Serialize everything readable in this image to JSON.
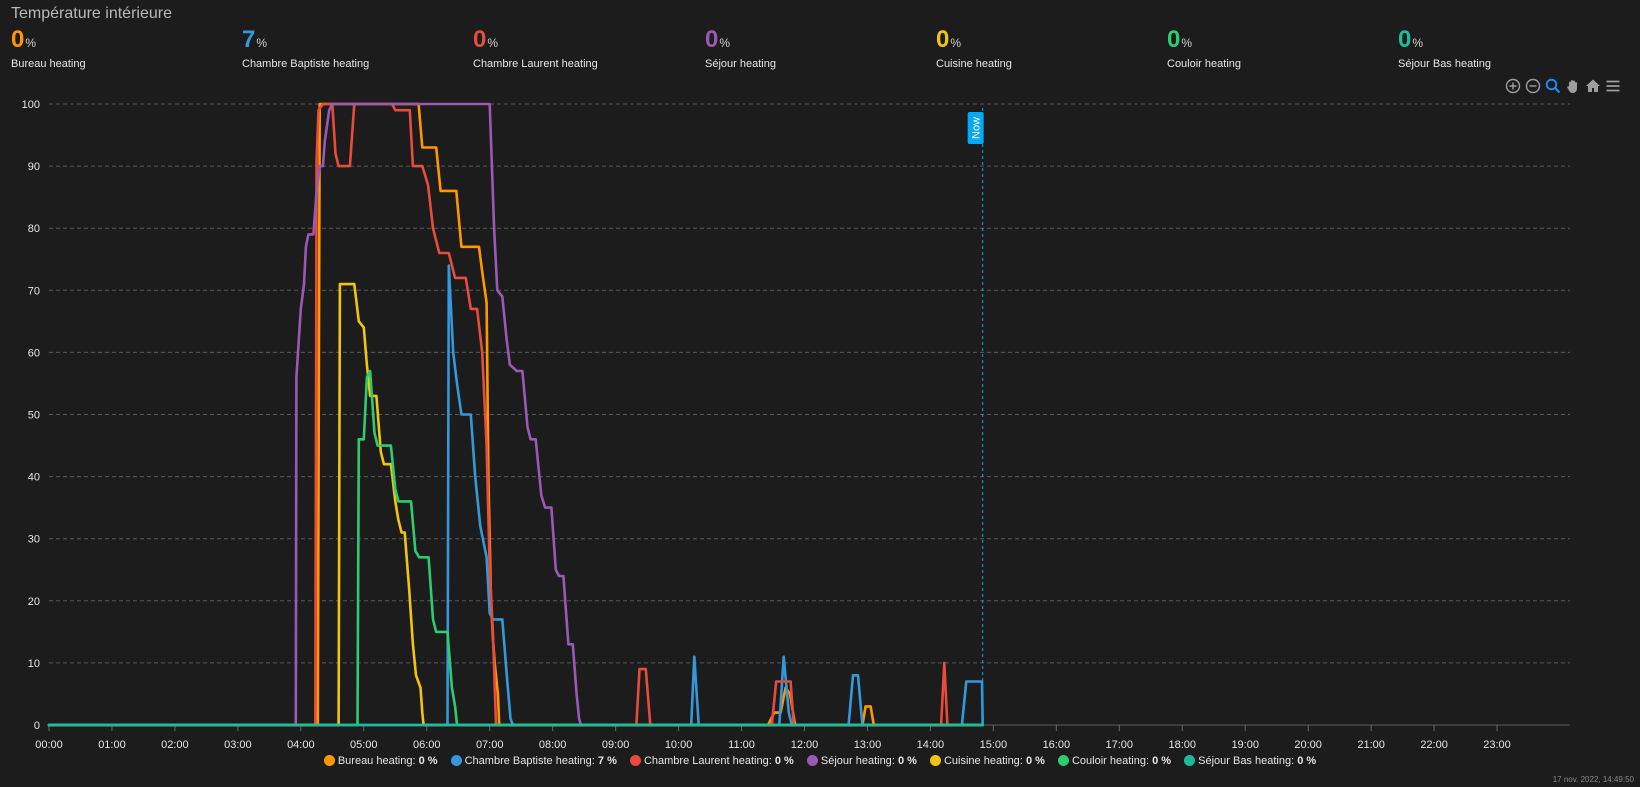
{
  "card": {
    "title": "Température intérieure"
  },
  "stats": [
    {
      "value": "0",
      "unit": "%",
      "name": "Bureau heating",
      "color": "#ff9800"
    },
    {
      "value": "7",
      "unit": "%",
      "name": "Chambre Baptiste heating",
      "color": "#3498db"
    },
    {
      "value": "0",
      "unit": "%",
      "name": "Chambre Laurent heating",
      "color": "#e74c3c"
    },
    {
      "value": "0",
      "unit": "%",
      "name": "Séjour heating",
      "color": "#9b59b6"
    },
    {
      "value": "0",
      "unit": "%",
      "name": "Cuisine heating",
      "color": "#f1c40f"
    },
    {
      "value": "0",
      "unit": "%",
      "name": "Couloir heating",
      "color": "#2ecc71"
    },
    {
      "value": "0",
      "unit": "%",
      "name": "Séjour Bas heating",
      "color": "#1abc9c"
    }
  ],
  "toolbar": {
    "icons": [
      "zoom-in-icon",
      "zoom-out-icon",
      "selection-zoom-icon",
      "pan-hand-icon",
      "home-reset-icon",
      "menu-icon"
    ]
  },
  "footer": {
    "timestamp": "17 nov. 2022, 14:49:50"
  },
  "chart_data": {
    "type": "line",
    "x_unit": "hour of day",
    "xlim": [
      0,
      24
    ],
    "ylim": [
      0,
      100
    ],
    "y_ticks": [
      "0",
      "10",
      "20",
      "30",
      "40",
      "50",
      "60",
      "70",
      "80",
      "90",
      "100"
    ],
    "x_ticks": [
      "00:00",
      "01:00",
      "02:00",
      "03:00",
      "04:00",
      "05:00",
      "06:00",
      "07:00",
      "08:00",
      "09:00",
      "10:00",
      "11:00",
      "12:00",
      "13:00",
      "14:00",
      "15:00",
      "16:00",
      "17:00",
      "18:00",
      "19:00",
      "20:00",
      "21:00",
      "22:00",
      "23:00"
    ],
    "grid": true,
    "legend_position": "bottom",
    "annotation": {
      "label": "Now",
      "x": 14.83,
      "color": "#03a9f4"
    },
    "series": [
      {
        "name": "Bureau heating",
        "legend_value": "0 %",
        "color": "#ff9800",
        "points": [
          [
            0,
            0
          ],
          [
            4.27,
            0
          ],
          [
            4.3,
            100
          ],
          [
            5.87,
            100
          ],
          [
            5.93,
            93
          ],
          [
            6.15,
            93
          ],
          [
            6.22,
            86
          ],
          [
            6.47,
            86
          ],
          [
            6.55,
            77
          ],
          [
            6.83,
            77
          ],
          [
            6.88,
            73
          ],
          [
            6.95,
            68
          ],
          [
            6.98,
            40
          ],
          [
            7.02,
            20
          ],
          [
            7.05,
            14
          ],
          [
            7.08,
            10
          ],
          [
            7.13,
            5
          ],
          [
            7.15,
            0
          ],
          [
            11.42,
            0
          ],
          [
            11.52,
            2
          ],
          [
            11.62,
            2
          ],
          [
            11.7,
            6
          ],
          [
            11.77,
            5
          ],
          [
            11.85,
            0
          ],
          [
            12.92,
            0
          ],
          [
            12.97,
            3
          ],
          [
            13.05,
            3
          ],
          [
            13.1,
            0
          ],
          [
            14.83,
            0
          ]
        ]
      },
      {
        "name": "Chambre Baptiste heating",
        "legend_value": "7 %",
        "color": "#3498db",
        "points": [
          [
            0,
            0
          ],
          [
            6.33,
            0
          ],
          [
            6.35,
            74
          ],
          [
            6.42,
            60
          ],
          [
            6.48,
            55
          ],
          [
            6.55,
            50
          ],
          [
            6.7,
            50
          ],
          [
            6.77,
            40
          ],
          [
            6.85,
            32
          ],
          [
            6.95,
            27
          ],
          [
            7.0,
            18
          ],
          [
            7.05,
            17
          ],
          [
            7.2,
            17
          ],
          [
            7.28,
            7
          ],
          [
            7.33,
            1
          ],
          [
            7.37,
            0
          ],
          [
            10.2,
            0
          ],
          [
            10.25,
            11
          ],
          [
            10.32,
            0
          ],
          [
            11.6,
            0
          ],
          [
            11.67,
            11
          ],
          [
            11.75,
            2
          ],
          [
            11.8,
            0
          ],
          [
            12.7,
            0
          ],
          [
            12.77,
            8
          ],
          [
            12.85,
            8
          ],
          [
            12.92,
            0
          ],
          [
            14.5,
            0
          ],
          [
            14.57,
            7
          ],
          [
            14.82,
            7
          ],
          [
            14.83,
            0
          ]
        ]
      },
      {
        "name": "Chambre Laurent heating",
        "legend_value": "0 %",
        "color": "#e74c3c",
        "points": [
          [
            0,
            0
          ],
          [
            4.23,
            0
          ],
          [
            4.25,
            91
          ],
          [
            4.28,
            99
          ],
          [
            4.35,
            100
          ],
          [
            4.5,
            100
          ],
          [
            4.55,
            92
          ],
          [
            4.6,
            90
          ],
          [
            4.78,
            90
          ],
          [
            4.85,
            100
          ],
          [
            5.45,
            100
          ],
          [
            5.5,
            99
          ],
          [
            5.73,
            99
          ],
          [
            5.78,
            90
          ],
          [
            5.93,
            90
          ],
          [
            6.02,
            87
          ],
          [
            6.1,
            80
          ],
          [
            6.2,
            76
          ],
          [
            6.35,
            76
          ],
          [
            6.45,
            72
          ],
          [
            6.62,
            72
          ],
          [
            6.7,
            67
          ],
          [
            6.8,
            67
          ],
          [
            6.88,
            60
          ],
          [
            6.95,
            45
          ],
          [
            7.0,
            25
          ],
          [
            7.05,
            15
          ],
          [
            7.1,
            0
          ],
          [
            9.33,
            0
          ],
          [
            9.38,
            9
          ],
          [
            9.48,
            9
          ],
          [
            9.55,
            0
          ],
          [
            11.48,
            0
          ],
          [
            11.55,
            7
          ],
          [
            11.78,
            7
          ],
          [
            11.83,
            0
          ],
          [
            14.17,
            0
          ],
          [
            14.22,
            10
          ],
          [
            14.27,
            0
          ],
          [
            14.83,
            0
          ]
        ]
      },
      {
        "name": "Séjour heating",
        "legend_value": "0 %",
        "color": "#9b59b6",
        "points": [
          [
            0,
            0
          ],
          [
            3.92,
            0
          ],
          [
            3.93,
            56
          ],
          [
            4.0,
            67
          ],
          [
            4.05,
            71
          ],
          [
            4.08,
            77
          ],
          [
            4.12,
            79
          ],
          [
            4.2,
            79
          ],
          [
            4.25,
            86
          ],
          [
            4.3,
            90
          ],
          [
            4.35,
            90
          ],
          [
            4.38,
            94
          ],
          [
            4.45,
            99
          ],
          [
            4.5,
            100
          ],
          [
            7.0,
            100
          ],
          [
            7.07,
            80
          ],
          [
            7.12,
            70
          ],
          [
            7.2,
            69
          ],
          [
            7.27,
            62
          ],
          [
            7.32,
            58
          ],
          [
            7.43,
            57
          ],
          [
            7.52,
            57
          ],
          [
            7.6,
            48
          ],
          [
            7.65,
            46
          ],
          [
            7.73,
            46
          ],
          [
            7.82,
            37
          ],
          [
            7.88,
            35
          ],
          [
            7.98,
            35
          ],
          [
            8.05,
            25
          ],
          [
            8.1,
            24
          ],
          [
            8.17,
            24
          ],
          [
            8.25,
            13
          ],
          [
            8.32,
            13
          ],
          [
            8.38,
            5
          ],
          [
            8.42,
            1
          ],
          [
            8.45,
            0
          ],
          [
            14.83,
            0
          ]
        ]
      },
      {
        "name": "Cuisine heating",
        "legend_value": "0 %",
        "color": "#f1c40f",
        "points": [
          [
            0,
            0
          ],
          [
            4.6,
            0
          ],
          [
            4.62,
            71
          ],
          [
            4.85,
            71
          ],
          [
            4.92,
            65
          ],
          [
            5.0,
            64
          ],
          [
            5.05,
            58
          ],
          [
            5.1,
            53
          ],
          [
            5.2,
            53
          ],
          [
            5.27,
            44
          ],
          [
            5.32,
            42
          ],
          [
            5.43,
            42
          ],
          [
            5.5,
            36
          ],
          [
            5.55,
            33
          ],
          [
            5.6,
            31
          ],
          [
            5.65,
            31
          ],
          [
            5.72,
            22
          ],
          [
            5.78,
            13
          ],
          [
            5.83,
            8
          ],
          [
            5.9,
            6
          ],
          [
            5.93,
            2
          ],
          [
            5.95,
            0
          ],
          [
            14.83,
            0
          ]
        ]
      },
      {
        "name": "Couloir heating",
        "legend_value": "0 %",
        "color": "#2ecc71",
        "points": [
          [
            0,
            0
          ],
          [
            4.9,
            0
          ],
          [
            4.92,
            46
          ],
          [
            5.0,
            46
          ],
          [
            5.05,
            56
          ],
          [
            5.1,
            57
          ],
          [
            5.17,
            47
          ],
          [
            5.22,
            45
          ],
          [
            5.43,
            45
          ],
          [
            5.5,
            38
          ],
          [
            5.55,
            36
          ],
          [
            5.75,
            36
          ],
          [
            5.82,
            28
          ],
          [
            5.88,
            27
          ],
          [
            6.03,
            27
          ],
          [
            6.1,
            17
          ],
          [
            6.15,
            15
          ],
          [
            6.33,
            15
          ],
          [
            6.4,
            6
          ],
          [
            6.45,
            3
          ],
          [
            6.48,
            0
          ],
          [
            14.83,
            0
          ]
        ]
      },
      {
        "name": "Séjour Bas heating",
        "legend_value": "0 %",
        "color": "#1abc9c",
        "points": [
          [
            0,
            0
          ],
          [
            14.83,
            0
          ]
        ]
      }
    ]
  }
}
